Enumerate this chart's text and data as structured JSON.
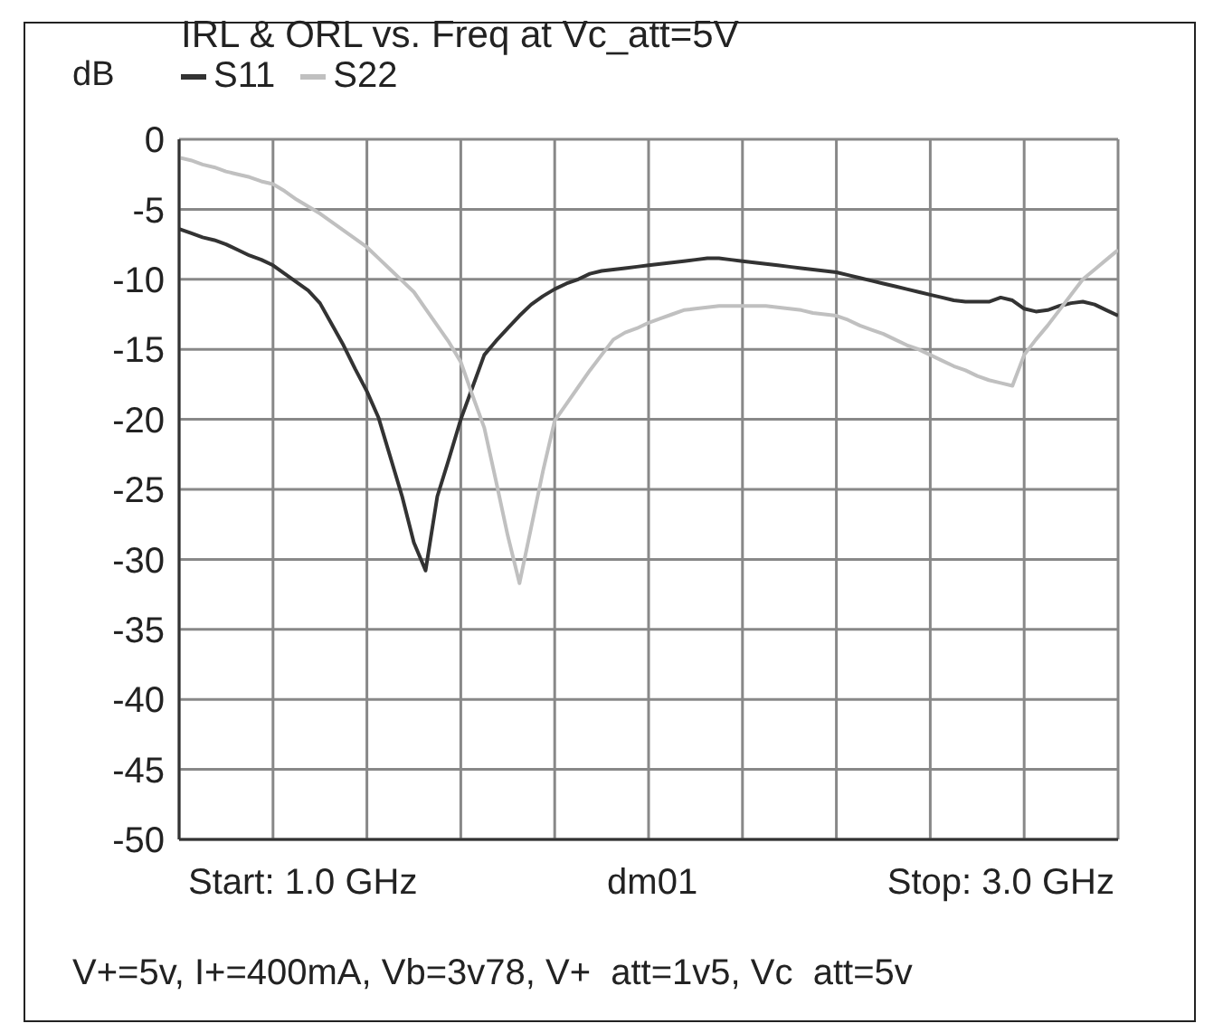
{
  "chart_data": {
    "type": "line",
    "title": "IRL & ORL vs. Freq at Vc_att=5V",
    "ylabel": "dB",
    "categories": [
      null,
      null,
      null,
      null,
      null,
      null,
      null,
      null,
      null,
      null,
      null,
      null,
      null,
      null,
      null,
      null,
      null,
      null,
      null,
      null,
      null,
      null,
      null,
      null,
      null,
      null,
      null,
      null,
      null,
      null,
      null,
      null,
      null,
      null,
      null,
      null,
      null,
      null,
      null,
      null,
      null,
      null,
      null,
      null,
      null,
      null,
      null,
      null,
      null,
      null,
      null,
      null,
      null,
      null,
      null,
      null,
      null,
      null,
      null,
      null,
      null,
      null,
      null,
      null,
      null,
      null,
      null,
      null,
      null,
      null,
      null,
      null,
      null,
      null,
      null,
      null,
      null,
      null,
      null,
      null,
      null
    ],
    "ylim": [
      -50,
      0
    ],
    "yticks": [
      0,
      -5,
      -10,
      -15,
      -20,
      -25,
      -30,
      -35,
      -40,
      -45,
      -50
    ],
    "grid": true,
    "legend": "top left",
    "marker": "none",
    "line_style": "solid",
    "series": [
      {
        "name": "S11",
        "color": "#333333",
        "values": [
          -6.4,
          -6.7,
          -7.0,
          -7.2,
          -7.5,
          -7.9,
          -8.3,
          -8.6,
          -9.0,
          -9.6,
          -10.2,
          -10.8,
          -11.7,
          -13.2,
          -14.7,
          -16.4,
          -18.0,
          -19.9,
          -22.7,
          -25.5,
          -28.8,
          -30.8,
          -25.5,
          -22.8,
          -20.0,
          -17.7,
          -15.4,
          -14.4,
          -13.5,
          -12.6,
          -11.8,
          -11.2,
          -10.7,
          -10.3,
          -10.0,
          -9.6,
          -9.4,
          -9.3,
          -9.2,
          -9.1,
          -9.0,
          -8.9,
          -8.8,
          -8.7,
          -8.6,
          -8.5,
          -8.5,
          -8.6,
          -8.7,
          -8.8,
          -8.9,
          -9.0,
          -9.1,
          -9.2,
          -9.3,
          -9.4,
          -9.5,
          -9.7,
          -9.9,
          -10.1,
          -10.3,
          -10.5,
          -10.7,
          -10.9,
          -11.1,
          -11.3,
          -11.5,
          -11.6,
          -11.6,
          -11.6,
          -11.3,
          -11.5,
          -12.1,
          -12.3,
          -12.2,
          -11.9,
          -11.7,
          -11.6,
          -11.8,
          -12.2,
          -12.6
        ]
      },
      {
        "name": "S22",
        "color": "#c0c0c0",
        "values": [
          -1.3,
          -1.5,
          -1.8,
          -2.0,
          -2.3,
          -2.5,
          -2.7,
          -3.0,
          -3.2,
          -3.7,
          -4.3,
          -4.8,
          -5.3,
          -5.9,
          -6.5,
          -7.1,
          -7.7,
          -8.5,
          -9.3,
          -10.1,
          -10.9,
          -12.1,
          -13.3,
          -14.5,
          -15.9,
          -18.3,
          -20.6,
          -24.4,
          -28.3,
          -31.7,
          -27.7,
          -23.7,
          -20.1,
          -18.9,
          -17.7,
          -16.5,
          -15.4,
          -14.3,
          -13.8,
          -13.5,
          -13.1,
          -12.8,
          -12.5,
          -12.2,
          -12.1,
          -12.0,
          -11.9,
          -11.9,
          -11.9,
          -11.9,
          -11.9,
          -12.0,
          -12.1,
          -12.2,
          -12.4,
          -12.5,
          -12.6,
          -12.9,
          -13.3,
          -13.6,
          -13.9,
          -14.3,
          -14.7,
          -15.0,
          -15.4,
          -15.8,
          -16.2,
          -16.5,
          -16.9,
          -17.2,
          -17.4,
          -17.6,
          -15.4,
          -14.3,
          -13.3,
          -12.2,
          -11.1,
          -10.0,
          -9.3,
          -8.6,
          -7.9
        ]
      }
    ],
    "annotations": [
      "Start: 1.0 GHz",
      "dm01",
      "Stop: 3.0 GHz",
      "V+=5v, I+=400mA, Vb=3v78, V+  att=1v5, Vc  att=5v"
    ]
  }
}
